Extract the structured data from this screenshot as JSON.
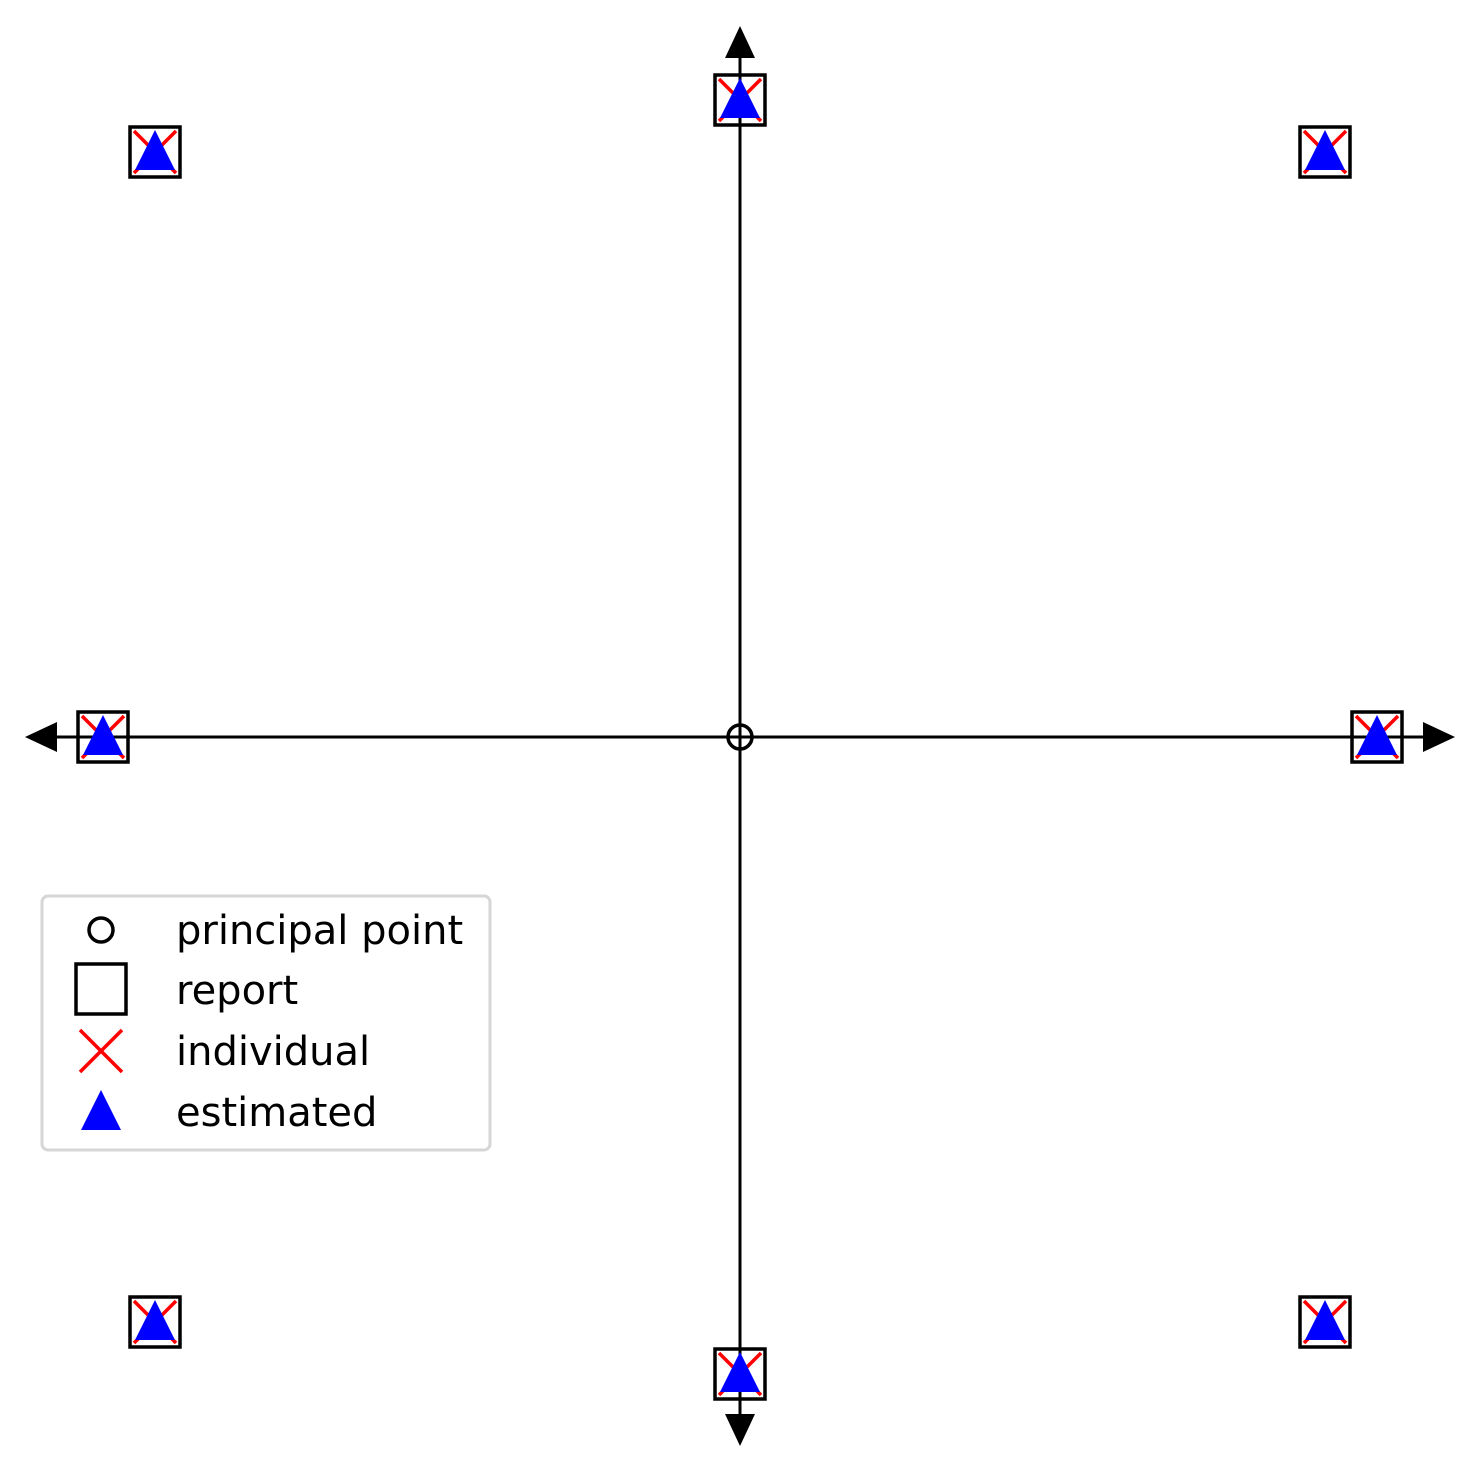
{
  "chart_data": {
    "type": "scatter",
    "title": "",
    "xlabel": "",
    "ylabel": "",
    "grid": false,
    "legend_position": "lower-left",
    "xlim": [
      -1.1,
      1.1
    ],
    "ylim": [
      -1.1,
      1.1
    ],
    "principal_point": {
      "x": 0,
      "y": 0
    },
    "series": [
      {
        "name": "principal point",
        "marker": "circle",
        "color": "#000000",
        "points": [
          {
            "x": 0,
            "y": 0
          }
        ]
      },
      {
        "name": "report",
        "marker": "square",
        "color": "#000000",
        "points": [
          {
            "x": -0.9,
            "y": 0.9
          },
          {
            "x": 0,
            "y": 0.98
          },
          {
            "x": 0.9,
            "y": 0.9
          },
          {
            "x": -0.98,
            "y": 0
          },
          {
            "x": 0.98,
            "y": 0
          },
          {
            "x": -0.9,
            "y": -0.9
          },
          {
            "x": 0,
            "y": -0.98
          },
          {
            "x": 0.9,
            "y": -0.9
          }
        ]
      },
      {
        "name": "individual",
        "marker": "x",
        "color": "#ff0000",
        "points": [
          {
            "x": -0.9,
            "y": 0.9
          },
          {
            "x": 0,
            "y": 0.98
          },
          {
            "x": 0.9,
            "y": 0.9
          },
          {
            "x": -0.98,
            "y": 0
          },
          {
            "x": 0.98,
            "y": 0
          },
          {
            "x": -0.9,
            "y": -0.9
          },
          {
            "x": 0,
            "y": -0.98
          },
          {
            "x": 0.9,
            "y": -0.9
          }
        ]
      },
      {
        "name": "estimated",
        "marker": "triangle",
        "color": "#0000ff",
        "points": [
          {
            "x": -0.9,
            "y": 0.9
          },
          {
            "x": 0,
            "y": 0.98
          },
          {
            "x": 0.9,
            "y": 0.9
          },
          {
            "x": -0.98,
            "y": 0
          },
          {
            "x": 0.98,
            "y": 0
          },
          {
            "x": -0.9,
            "y": -0.9
          },
          {
            "x": 0,
            "y": -0.98
          },
          {
            "x": 0.9,
            "y": -0.9
          }
        ]
      }
    ],
    "legend": [
      {
        "label": "principal point",
        "marker": "circle"
      },
      {
        "label": "report",
        "marker": "square"
      },
      {
        "label": "individual",
        "marker": "x"
      },
      {
        "label": "estimated",
        "marker": "triangle"
      }
    ]
  }
}
